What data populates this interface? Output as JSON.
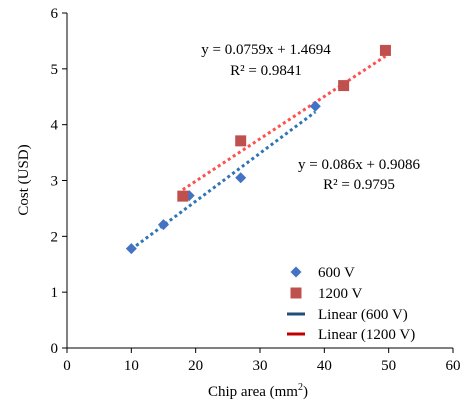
{
  "chart_data": {
    "type": "scatter",
    "xlabel": "Chip area (mm",
    "xlabel_superscript": "2",
    "xlabel_suffix": ")",
    "ylabel": "Cost (USD)",
    "xlim": [
      0,
      60
    ],
    "ylim": [
      0,
      6
    ],
    "x_ticks": [
      0,
      10,
      20,
      30,
      40,
      50,
      60
    ],
    "y_ticks": [
      0,
      1,
      2,
      3,
      4,
      5,
      6
    ],
    "grid": false,
    "legend_position": "bottom-right",
    "series": [
      {
        "name": "600 V",
        "marker": "diamond",
        "color": "#4472C4",
        "points": [
          {
            "x": 10,
            "y": 1.78
          },
          {
            "x": 15,
            "y": 2.21
          },
          {
            "x": 19,
            "y": 2.73
          },
          {
            "x": 27,
            "y": 3.05
          },
          {
            "x": 38.6,
            "y": 4.33
          }
        ]
      },
      {
        "name": "1200 V",
        "marker": "square",
        "color": "#C0504D",
        "points": [
          {
            "x": 18,
            "y": 2.72
          },
          {
            "x": 27,
            "y": 3.71
          },
          {
            "x": 43,
            "y": 4.7
          },
          {
            "x": 49.5,
            "y": 5.33
          }
        ]
      }
    ],
    "trendlines": [
      {
        "name": "Linear (600 V)",
        "legend_color": "#1F4E79",
        "line_color": "#2E75B6",
        "slope": 0.086,
        "intercept": 0.9086,
        "x_range": [
          10,
          38.6
        ],
        "equation": "y = 0.086x + 0.9086",
        "r2": "R² = 0.9795"
      },
      {
        "name": "Linear (1200 V)",
        "legend_color": "#C00000",
        "line_color": "#FF5050",
        "slope": 0.0759,
        "intercept": 1.4694,
        "x_range": [
          18,
          49.5
        ],
        "equation": "y = 0.0759x + 1.4694",
        "r2": "R² = 0.9841"
      }
    ]
  }
}
